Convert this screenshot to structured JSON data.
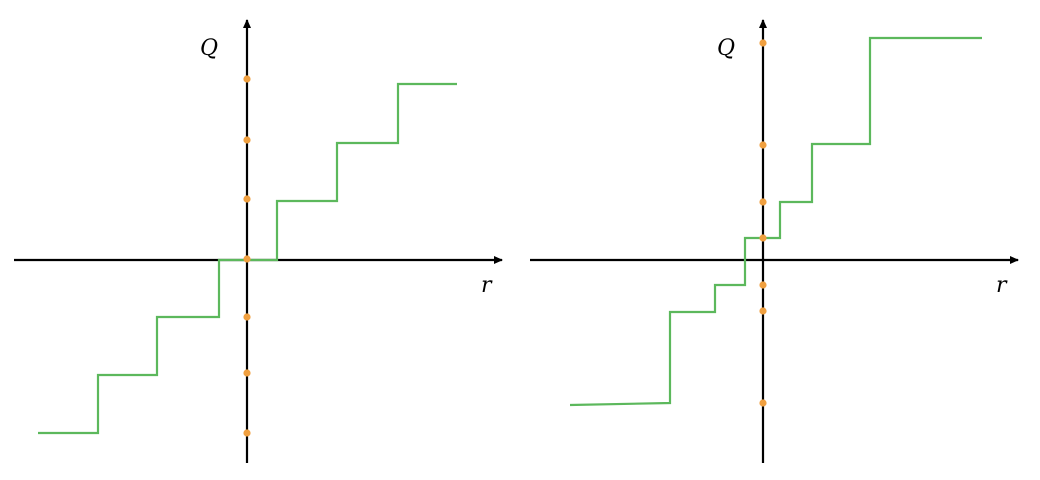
{
  "colors": {
    "axis": "#000000",
    "staircase": "#5cb85c",
    "level_marker": "#f0a040"
  },
  "panels": [
    {
      "id": "uniform",
      "x_axis_label": "r",
      "y_axis_label": "Q"
    },
    {
      "id": "non-uniform",
      "x_axis_label": "r",
      "y_axis_label": "Q"
    }
  ]
}
